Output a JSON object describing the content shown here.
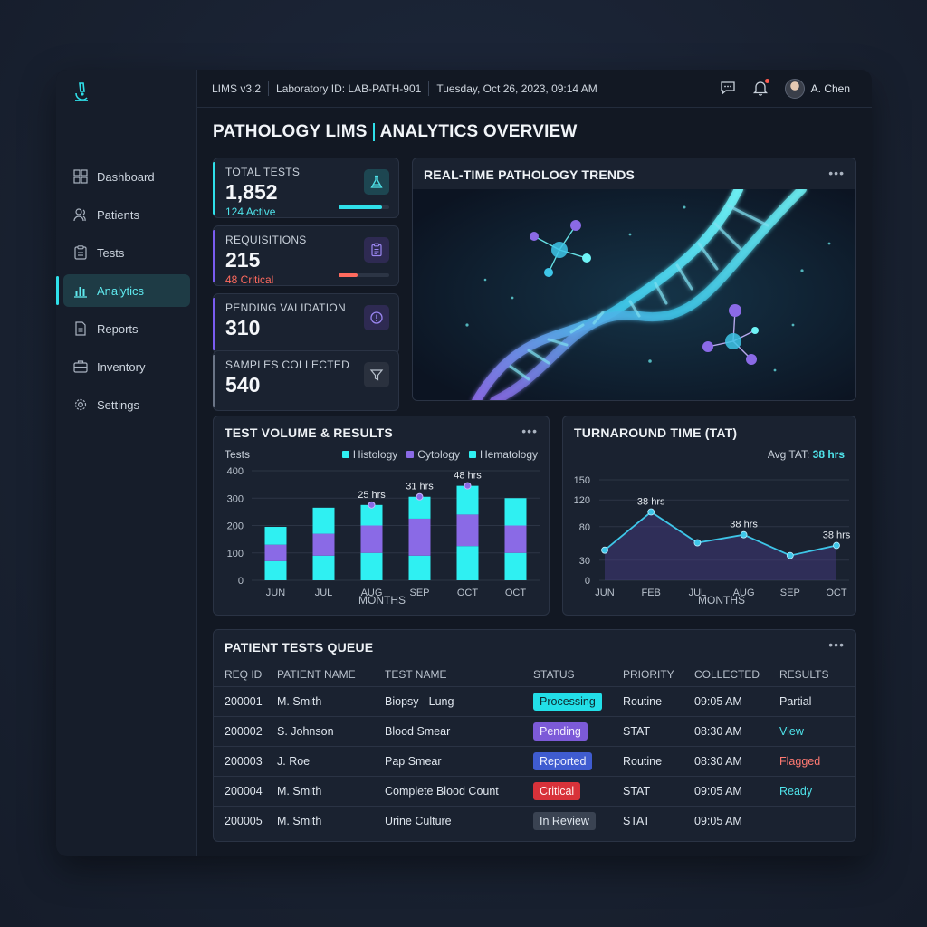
{
  "sidebar": {
    "items": [
      {
        "label": "Dashboard",
        "icon": "grid-icon"
      },
      {
        "label": "Patients",
        "icon": "users-icon"
      },
      {
        "label": "Tests",
        "icon": "clipboard-icon"
      },
      {
        "label": "Analytics",
        "icon": "bar-chart-icon",
        "active": true
      },
      {
        "label": "Reports",
        "icon": "document-icon"
      },
      {
        "label": "Inventory",
        "icon": "briefcase-icon"
      },
      {
        "label": "Settings",
        "icon": "gear-icon"
      }
    ]
  },
  "header": {
    "version": "LIMS v3.2",
    "lab_id": "Laboratory ID: LAB-PATH-901",
    "datetime": "Tuesday, Oct 26, 2023, 09:14 AM",
    "user": "A. Chen"
  },
  "page": {
    "title_left": "PATHOLOGY LIMS",
    "title_right": "ANALYTICS OVERVIEW"
  },
  "kpis": [
    {
      "label": "TOTAL TESTS",
      "value": "1,852",
      "sub": "124 Active",
      "sub_color": "#4fe3ea",
      "accent": "#2fe0ea",
      "progress": 0.85,
      "bar_color": "#2fe0ea",
      "icon": "flask-icon"
    },
    {
      "label": "REQUISITIONS",
      "value": "215",
      "sub": "48 Critical",
      "sub_color": "#ff6a5e",
      "accent": "#7a5cf0",
      "progress": 0.38,
      "bar_color": "#ff6a5e",
      "icon": "clipboard-icon"
    },
    {
      "label": "PENDING VALIDATION",
      "value": "310",
      "sub": "",
      "accent": "#7a5cf0",
      "icon": "alert-icon"
    },
    {
      "label": "SAMPLES COLLECTED",
      "value": "540",
      "sub": "",
      "accent": "#6a7486",
      "icon": "filter-icon"
    }
  ],
  "trends": {
    "title": "REAL-TIME PATHOLOGY TRENDS"
  },
  "volume_chart": {
    "title": "TEST VOLUME & RESULTS",
    "ylabel": "Tests",
    "xlabel": "MONTHS",
    "legend": [
      {
        "name": "Histology",
        "color": "#2ff0f2"
      },
      {
        "name": "Cytology",
        "color": "#8a6ae6"
      },
      {
        "name": "Hematology",
        "color": "#2ff0f2"
      }
    ]
  },
  "tat_chart": {
    "title": "TURNAROUND TIME (TAT)",
    "avg_label": "Avg TAT:",
    "avg_value": "38 hrs",
    "xlabel": "MONTHS"
  },
  "chart_data": [
    {
      "type": "bar",
      "stacked": true,
      "title": "TEST VOLUME & RESULTS",
      "ylabel": "Tests",
      "xlabel": "MONTHS",
      "ylim": [
        0,
        400
      ],
      "yticks": [
        0,
        100,
        200,
        300,
        400
      ],
      "categories": [
        "JUN",
        "JUL",
        "AUG",
        "SEP",
        "OCT",
        "OCT"
      ],
      "series": [
        {
          "name": "Histology",
          "color": "#2ff0f2",
          "values": [
            70,
            90,
            100,
            90,
            125,
            100
          ]
        },
        {
          "name": "Cytology",
          "color": "#8a6ae6",
          "values": [
            60,
            80,
            100,
            135,
            115,
            100
          ]
        },
        {
          "name": "Hematology",
          "color": "#2ff0f2",
          "values": [
            65,
            95,
            75,
            80,
            105,
            100
          ]
        }
      ],
      "annotations": [
        {
          "category_index": 2,
          "label": "25 hrs"
        },
        {
          "category_index": 3,
          "label": "31 hrs"
        },
        {
          "category_index": 4,
          "label": "48 hrs"
        }
      ],
      "legend": "top-right"
    },
    {
      "type": "line",
      "title": "TURNAROUND TIME (TAT)",
      "xlabel": "MONTHS",
      "ylim": [
        0,
        150
      ],
      "yticks": [
        0,
        30,
        80,
        120,
        150
      ],
      "categories": [
        "JUN",
        "FEB",
        "JUL",
        "AUG",
        "SEP",
        "OCT"
      ],
      "values": [
        45,
        102,
        56,
        68,
        37,
        52
      ],
      "point_labels": [
        "",
        "38 hrs",
        "",
        "38 hrs",
        "",
        "38 hrs"
      ],
      "color": "#3ec6e8"
    }
  ],
  "queue": {
    "title": "PATIENT TESTS QUEUE",
    "columns": [
      "REQ ID",
      "PATIENT NAME",
      "TEST NAME",
      "STATUS",
      "PRIORITY",
      "COLLECTED",
      "RESULTS"
    ],
    "rows": [
      {
        "id": "200001",
        "patient": "M. Smith",
        "test": "Biopsy - Lung",
        "status": "Processing",
        "status_bg": "#22dfe8",
        "status_fg": "#0d2a30",
        "priority": "Routine",
        "collected": "09:05 AM",
        "result": "Partial",
        "result_color": "#dfe6ee"
      },
      {
        "id": "200002",
        "patient": "S. Johnson",
        "test": "Blood Smear",
        "status": "Pending",
        "status_bg": "#7c5ad8",
        "status_fg": "#f2eefe",
        "priority": "STAT",
        "collected": "08:30 AM",
        "result": "View",
        "result_color": "#4fe3ea"
      },
      {
        "id": "200003",
        "patient": "J. Roe",
        "test": "Pap Smear",
        "status": "Reported",
        "status_bg": "#3f5cd0",
        "status_fg": "#eef1fe",
        "priority": "Routine",
        "collected": "08:30 AM",
        "result": "Flagged",
        "result_color": "#ff7a72"
      },
      {
        "id": "200004",
        "patient": "M. Smith",
        "test": "Complete Blood Count",
        "status": "Critical",
        "status_bg": "#d8323a",
        "status_fg": "#fff1f1",
        "priority": "STAT",
        "collected": "09:05 AM",
        "result": "Ready",
        "result_color": "#4fe3ea"
      },
      {
        "id": "200005",
        "patient": "M. Smith",
        "test": "Urine Culture",
        "status": "In Review",
        "status_bg": "#3a4352",
        "status_fg": "#dfe6ee",
        "priority": "STAT",
        "collected": "09:05 AM",
        "result": "",
        "result_color": "#dfe6ee"
      }
    ]
  }
}
